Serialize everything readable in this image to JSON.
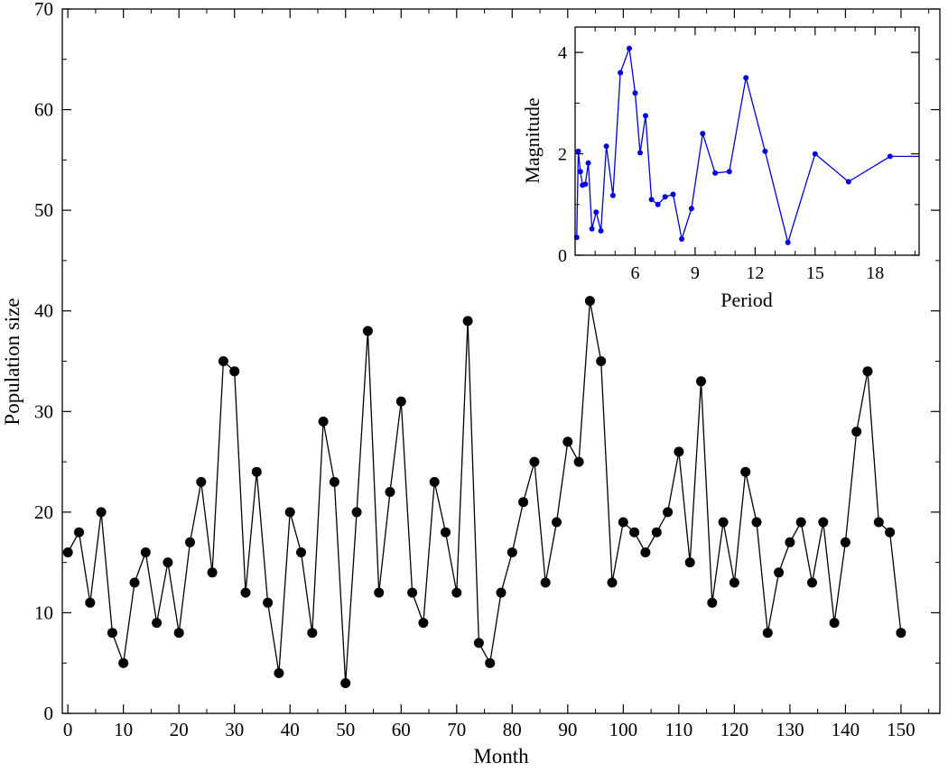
{
  "chart_data": [
    {
      "type": "line",
      "title": "",
      "xlabel": "Month",
      "ylabel": "Population size",
      "xlim": [
        -1,
        157
      ],
      "ylim": [
        0,
        70
      ],
      "xticks": [
        0,
        10,
        20,
        30,
        40,
        50,
        60,
        70,
        80,
        90,
        100,
        110,
        120,
        130,
        140,
        150
      ],
      "yticks": [
        0,
        10,
        20,
        30,
        40,
        50,
        60,
        70
      ],
      "grid": false,
      "marker": "filled-circle",
      "line_color": "#000000",
      "series": [
        {
          "x": [
            0,
            2,
            4,
            6,
            8,
            10,
            12,
            14,
            16,
            18,
            20,
            22,
            24,
            26,
            28,
            30,
            32,
            34,
            36,
            38,
            40,
            42,
            44,
            46,
            48,
            50,
            52,
            54,
            56,
            58,
            60,
            62,
            64,
            66,
            68,
            70,
            72,
            74,
            76,
            78,
            80,
            82,
            84,
            86,
            88,
            90,
            92,
            94,
            96,
            98,
            100,
            102,
            104,
            106,
            108,
            110,
            112,
            114,
            116,
            118,
            120,
            122,
            124,
            126,
            128,
            130,
            132,
            134,
            136,
            138,
            140,
            142,
            144,
            146,
            148,
            150
          ],
          "values": [
            16,
            18,
            11,
            20,
            8,
            5,
            13,
            16,
            9,
            15,
            8,
            17,
            23,
            14,
            35,
            34,
            12,
            24,
            11,
            4,
            20,
            16,
            8,
            29,
            23,
            3,
            20,
            38,
            12,
            22,
            31,
            12,
            9,
            23,
            18,
            12,
            39,
            7,
            5,
            12,
            16,
            21,
            25,
            13,
            19,
            27,
            25,
            41,
            35,
            13,
            19,
            18,
            16,
            18,
            20,
            26,
            15,
            33,
            11,
            19,
            13,
            24,
            19,
            8,
            14,
            17,
            19,
            13,
            19,
            9,
            17,
            28,
            34,
            19,
            18,
            8
          ]
        }
      ]
    },
    {
      "type": "line",
      "title": "",
      "xlabel": "Period",
      "ylabel": "Magnitude",
      "xlim": [
        3,
        20.2
      ],
      "ylim": [
        0,
        4.5
      ],
      "xticks": [
        6,
        9,
        12,
        15,
        18
      ],
      "yticks": [
        0,
        2,
        4
      ],
      "grid": false,
      "marker": "small-filled-circle",
      "line_color": "#0000dd",
      "series": [
        {
          "x": [
            3.08,
            3.16,
            3.26,
            3.37,
            3.51,
            3.66,
            3.84,
            4.05,
            4.29,
            4.56,
            4.89,
            5.26,
            5.71,
            6.0,
            6.25,
            6.52,
            6.82,
            7.14,
            7.5,
            7.9,
            8.33,
            8.82,
            9.38,
            10.0,
            10.71,
            11.54,
            12.5,
            13.64,
            15.0,
            16.67,
            18.75,
            20.2
          ],
          "values": [
            0.35,
            2.05,
            1.65,
            1.38,
            1.4,
            1.82,
            0.52,
            0.85,
            0.48,
            2.15,
            1.18,
            3.6,
            4.08,
            3.2,
            2.02,
            2.75,
            1.1,
            1.0,
            1.15,
            1.2,
            0.32,
            0.92,
            2.4,
            1.62,
            1.65,
            3.5,
            2.05,
            0.25,
            2.0,
            1.45,
            1.95,
            1.95
          ]
        }
      ]
    }
  ]
}
